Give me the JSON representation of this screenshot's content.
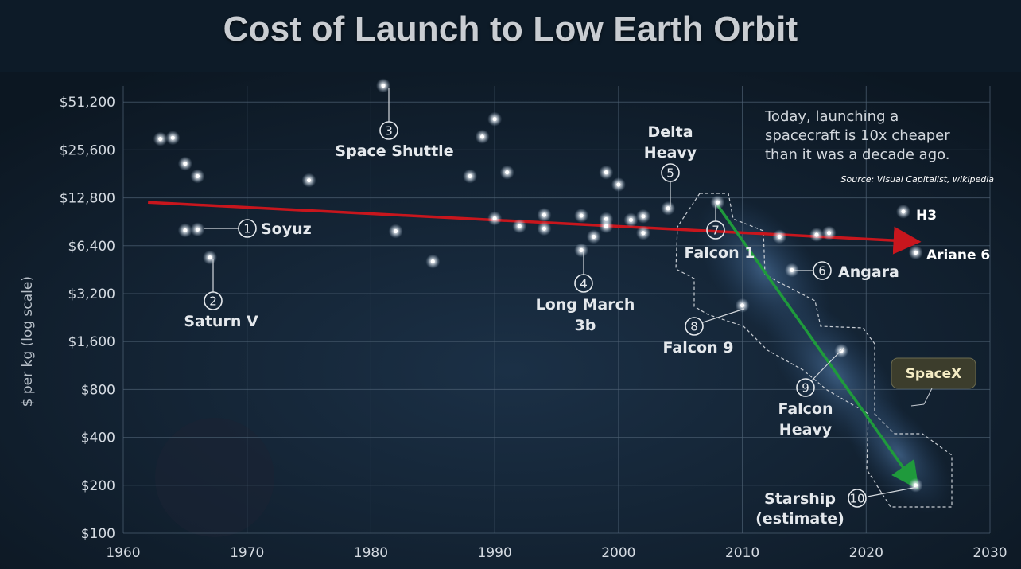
{
  "chart_data": {
    "type": "scatter",
    "title": "Cost of Launch to Low Earth Orbit",
    "ylabel": "$ per kg (log scale)",
    "xlabel": "",
    "x_ticks": [
      "1960",
      "1970",
      "1980",
      "1990",
      "2000",
      "2010",
      "2020",
      "2030"
    ],
    "y_ticks": [
      "$100",
      "$200",
      "$400",
      "$800",
      "$1,600",
      "$3,200",
      "$6,400",
      "$12,800",
      "$25,600",
      "$51,200"
    ],
    "xlim": [
      1960,
      2030
    ],
    "ylim": [
      100,
      60000
    ],
    "y_scale": "log",
    "grid": true,
    "points": [
      {
        "x": 1963,
        "y": 30000
      },
      {
        "x": 1964,
        "y": 30500
      },
      {
        "x": 1965,
        "y": 21000
      },
      {
        "x": 1966,
        "y": 17500
      },
      {
        "x": 1965,
        "y": 8000
      },
      {
        "x": 1975,
        "y": 16500
      },
      {
        "x": 1982,
        "y": 7900
      },
      {
        "x": 1985,
        "y": 5100
      },
      {
        "x": 1988,
        "y": 17500
      },
      {
        "x": 1989,
        "y": 31000
      },
      {
        "x": 1990,
        "y": 40000
      },
      {
        "x": 1990,
        "y": 9500
      },
      {
        "x": 1991,
        "y": 18500
      },
      {
        "x": 1992,
        "y": 8500
      },
      {
        "x": 1994,
        "y": 10000
      },
      {
        "x": 1994,
        "y": 8200
      },
      {
        "x": 1997,
        "y": 9900
      },
      {
        "x": 1998,
        "y": 7300
      },
      {
        "x": 1999,
        "y": 18500
      },
      {
        "x": 1999,
        "y": 9400
      },
      {
        "x": 1999,
        "y": 8500
      },
      {
        "x": 2000,
        "y": 15500
      },
      {
        "x": 2001,
        "y": 9300
      },
      {
        "x": 2002,
        "y": 9800
      },
      {
        "x": 2002,
        "y": 7700
      },
      {
        "x": 2013,
        "y": 7300
      },
      {
        "x": 2016,
        "y": 7500
      },
      {
        "x": 2017,
        "y": 7700
      }
    ],
    "labeled_points": [
      {
        "n": "1",
        "name": "Soyuz",
        "x": 1966,
        "y": 8100
      },
      {
        "n": "2",
        "name": "Saturn V",
        "x": 1967,
        "y": 5400
      },
      {
        "n": "3",
        "name": "Space Shuttle",
        "x": 1981,
        "y": 65000
      },
      {
        "n": "4",
        "name": "Long March 3b",
        "x": 1997,
        "y": 6000
      },
      {
        "n": "5",
        "name": "Delta Heavy",
        "x": 2004,
        "y": 11000
      },
      {
        "n": "6",
        "name": "Angara",
        "x": 2014,
        "y": 4500
      },
      {
        "n": "7",
        "name": "Falcon 1",
        "x": 2008,
        "y": 12000
      },
      {
        "n": "8",
        "name": "Falcon 9",
        "x": 2010,
        "y": 2700
      },
      {
        "n": "9",
        "name": "Falcon Heavy",
        "x": 2018,
        "y": 1400
      },
      {
        "n": "10",
        "name": "Starship (estimate)",
        "x": 2024,
        "y": 200
      },
      {
        "n": "",
        "name": "H3",
        "x": 2023,
        "y": 10500
      },
      {
        "n": "",
        "name": "Ariane 6",
        "x": 2024,
        "y": 5800
      }
    ],
    "trend_lines": [
      {
        "color": "#c8161d",
        "from": {
          "x": 1962,
          "y": 12000
        },
        "to": {
          "x": 2024,
          "y": 6800
        }
      },
      {
        "color": "#1f9a3c",
        "from": {
          "x": 2008,
          "y": 11500
        },
        "to": {
          "x": 2024,
          "y": 200
        }
      }
    ],
    "annotation": "Today, launching a spacecraft is 10x cheaper than it was a decade ago.",
    "annotation_lines": [
      "Today, launching a",
      "spacecraft is 10x cheaper",
      "than it was a decade ago."
    ],
    "source": "Source: Visual Capitalist, wikipedia",
    "badge": "SpaceX"
  }
}
